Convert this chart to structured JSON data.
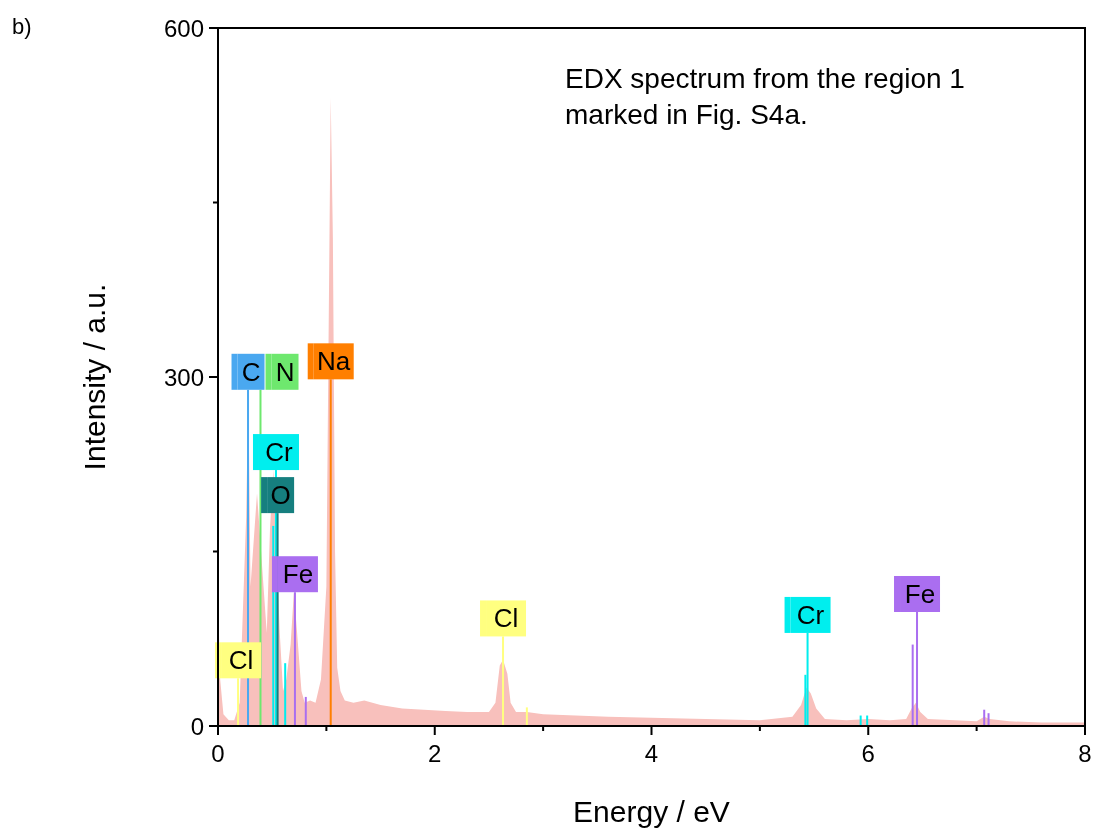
{
  "chart_data": {
    "type": "area",
    "xlabel": "Energy / eV",
    "ylabel": "Intensity / a.u.",
    "annotations": [
      "b)",
      "EDX spectrum  from the region 1\nmarked in Fig. S4a."
    ],
    "xlim": [
      0,
      8
    ],
    "xticks": [
      0,
      {
        "value": 1,
        "label": null
      },
      2,
      {
        "value": 3,
        "label": null
      },
      4,
      {
        "value": 5,
        "label": null
      },
      6,
      {
        "value": 7,
        "label": null
      },
      8
    ],
    "ylim": [
      0,
      600
    ],
    "yticks": [
      0,
      {
        "value": 150,
        "label": null
      },
      300,
      {
        "value": 450,
        "label": null
      },
      600
    ],
    "grid": false,
    "legend": "bottom left",
    "series": [
      {
        "color": "#f8c0bc",
        "x": [
          0,
          0.02,
          0.05,
          0.1,
          0.15,
          0.2,
          0.23,
          0.26,
          0.28,
          0.3,
          0.33,
          0.36,
          0.39,
          0.42,
          0.45,
          0.48,
          0.51,
          0.54,
          0.57,
          0.6,
          0.63,
          0.67,
          0.7,
          0.73,
          0.77,
          0.8,
          0.85,
          0.9,
          0.95,
          1.0,
          1.02,
          1.04,
          1.06,
          1.08,
          1.1,
          1.13,
          1.17,
          1.25,
          1.35,
          1.5,
          1.7,
          1.9,
          2.1,
          2.3,
          2.5,
          2.56,
          2.6,
          2.63,
          2.67,
          2.7,
          2.75,
          2.85,
          3.0,
          3.3,
          3.6,
          4.0,
          4.5,
          5.0,
          5.3,
          5.38,
          5.43,
          5.47,
          5.52,
          5.6,
          5.8,
          6.0,
          6.2,
          6.35,
          6.4,
          6.44,
          6.48,
          6.55,
          6.8,
          7.0,
          7.07,
          7.12,
          7.3,
          7.6,
          8.0
        ],
        "values": [
          110,
          40,
          10,
          5,
          5,
          20,
          null,
          180,
          290,
          120,
          null,
          200,
          null,
          120,
          80,
          170,
          220,
          null,
          80,
          30,
          40,
          70,
          115,
          80,
          30,
          20,
          22,
          20,
          40,
          120,
          null,
          540,
          420,
          150,
          50,
          30,
          22,
          20,
          22,
          18,
          15,
          14,
          13,
          12,
          12,
          20,
          52,
          57,
          45,
          20,
          12,
          12,
          10,
          9,
          8,
          7,
          6,
          5,
          8,
          18,
          33,
          28,
          15,
          6,
          5,
          6,
          5,
          6,
          15,
          20,
          12,
          6,
          5,
          4,
          8,
          6,
          4,
          3,
          3
        ]
      },
      {
        "type": "bar",
        "name": "C",
        "color": "#4aa8f0",
        "x": [
          0.277
        ],
        "values": [
          289
        ]
      },
      {
        "type": "bar",
        "name": "N",
        "color": "#6ee86e",
        "x": [
          0.392
        ],
        "values": [
          289
        ]
      },
      {
        "type": "bar",
        "name": "Cr",
        "color": "#00eeee",
        "x": [
          0.51,
          0.535,
          0.62
        ],
        "values": [
          172,
          220,
          54
        ]
      },
      {
        "type": "bar",
        "name": "O",
        "color": "#167f7f",
        "x": [
          0.55
        ],
        "values": [
          183
        ]
      },
      {
        "type": "bar",
        "name": "Fe",
        "color": "#aa6ef0",
        "x": [
          0.71,
          0.81
        ],
        "values": [
          115,
          25
        ]
      },
      {
        "type": "bar",
        "name": "Cl",
        "color": "#ffff80",
        "x": [
          0.185
        ],
        "values": [
          41
        ]
      },
      {
        "type": "bar",
        "name": "Na",
        "color": "#ff7f00",
        "x": [
          1.04
        ],
        "values": [
          298
        ]
      },
      {
        "type": "bar",
        "name": "Cl",
        "color": "#ffff80",
        "x": [
          2.63,
          2.85
        ],
        "values": [
          77,
          16
        ]
      },
      {
        "type": "bar",
        "name": "Cr",
        "color": "#00eeee",
        "x": [
          5.42,
          5.44,
          5.93,
          5.99
        ],
        "values": [
          44,
          80,
          9,
          9
        ]
      },
      {
        "type": "bar",
        "name": "Fe",
        "color": "#aa6ef0",
        "x": [
          6.41,
          6.45,
          7.07,
          7.11
        ],
        "values": [
          70,
          98,
          14,
          11
        ]
      }
    ]
  }
}
